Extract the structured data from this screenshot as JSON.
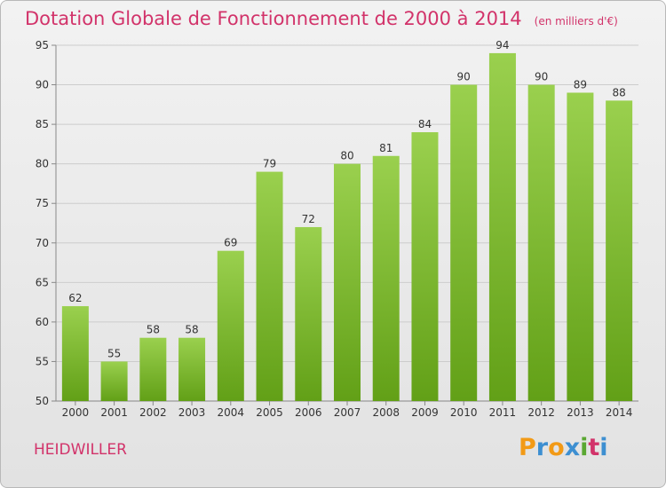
{
  "title": "Dotation Globale de Fonctionnement de 2000 à 2014",
  "unit": "(en milliers d'€)",
  "commune": "HEIDWILLER",
  "logo": {
    "letters": [
      {
        "ch": "P",
        "color": "#f29a16"
      },
      {
        "ch": "r",
        "color": "#3d8fd1"
      },
      {
        "ch": "o",
        "color": "#f29a16"
      },
      {
        "ch": "x",
        "color": "#3d8fd1"
      },
      {
        "ch": "i",
        "color": "#5aa832"
      },
      {
        "ch": "t",
        "color": "#d2336a"
      },
      {
        "ch": "i",
        "color": "#3d8fd1"
      }
    ]
  },
  "colors": {
    "accent": "#d2336a",
    "bar_light": "#9ad04e",
    "bar_dark": "#62a017"
  },
  "chart_data": {
    "type": "bar",
    "categories": [
      "2000",
      "2001",
      "2002",
      "2003",
      "2004",
      "2005",
      "2006",
      "2007",
      "2008",
      "2009",
      "2010",
      "2011",
      "2012",
      "2013",
      "2014"
    ],
    "values": [
      62,
      55,
      58,
      58,
      69,
      79,
      72,
      80,
      81,
      84,
      90,
      94,
      90,
      89,
      88
    ],
    "title": "Dotation Globale de Fonctionnement de 2000 à 2014",
    "ylabel": "(en milliers d'€)",
    "ylim": [
      50,
      95
    ],
    "yticks": [
      50,
      55,
      60,
      65,
      70,
      75,
      80,
      85,
      90,
      95
    ],
    "grid": "horizontal",
    "legend": "none"
  }
}
